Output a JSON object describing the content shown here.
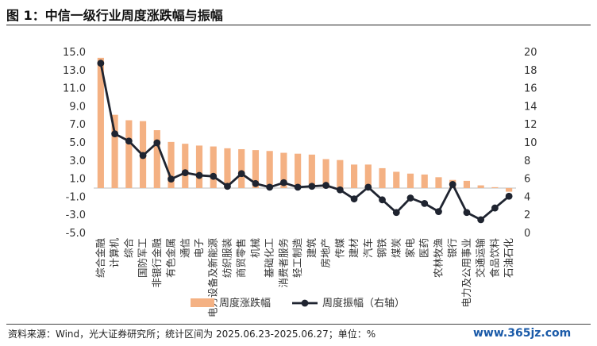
{
  "title": "图 1：中信一级行业周度涨跌幅与振幅",
  "footer": "资料来源：Wind，光大证券研究所；统计区间为 2025.06.23-2025.06.27；单位：%",
  "watermark": "www.365jz.com",
  "colors": {
    "bar": "#f4b183",
    "line": "#1f2430"
  },
  "chart_data": {
    "type": "bar",
    "categories": [
      "综合金融",
      "计算机",
      "综合",
      "国防军工",
      "非银行金融",
      "有色金属",
      "通信",
      "电子",
      "电力设备及新能源",
      "纺织服装",
      "商贸零售",
      "机械",
      "基础化工",
      "消费者服务",
      "轻工制造",
      "建筑",
      "房地产",
      "传媒",
      "建材",
      "汽车",
      "钢铁",
      "煤炭",
      "家电",
      "医药",
      "农林牧渔",
      "银行",
      "电力及公用事业",
      "交通运输",
      "食品饮料",
      "石油石化"
    ],
    "series": [
      {
        "name": "周度涨跌幅",
        "type": "bar",
        "axis": "left",
        "values": [
          14.4,
          8.1,
          7.5,
          7.4,
          6.4,
          5.1,
          4.9,
          4.7,
          4.6,
          4.4,
          4.3,
          4.2,
          4.1,
          3.9,
          3.8,
          3.7,
          3.2,
          3.1,
          2.6,
          2.6,
          2.2,
          1.8,
          1.6,
          1.5,
          1.2,
          0.9,
          0.8,
          0.3,
          0.1,
          -0.4
        ]
      },
      {
        "name": "周度振幅（右轴）",
        "type": "line",
        "axis": "right",
        "values": [
          18.8,
          11.0,
          10.2,
          8.6,
          10.0,
          6.0,
          6.7,
          6.4,
          6.3,
          5.2,
          6.6,
          5.5,
          5.1,
          5.6,
          5.1,
          5.2,
          5.3,
          4.8,
          3.8,
          5.1,
          3.7,
          2.3,
          3.9,
          3.3,
          2.4,
          5.4,
          2.3,
          1.5,
          2.8,
          4.1
        ]
      }
    ],
    "y_left": {
      "ylim": [
        -5.0,
        15.0
      ],
      "ticks": [
        "15.0",
        "13.0",
        "11.0",
        "9.0",
        "7.0",
        "5.0",
        "3.0",
        "1.0",
        "-1.0",
        "-3.0",
        "-5.0"
      ]
    },
    "y_right": {
      "ylim": [
        0,
        20
      ],
      "ticks": [
        "20",
        "18",
        "16",
        "14",
        "12",
        "10",
        "8",
        "6",
        "4",
        "2",
        "0"
      ]
    },
    "legend": [
      "周度涨跌幅",
      "周度振幅（右轴）"
    ]
  }
}
